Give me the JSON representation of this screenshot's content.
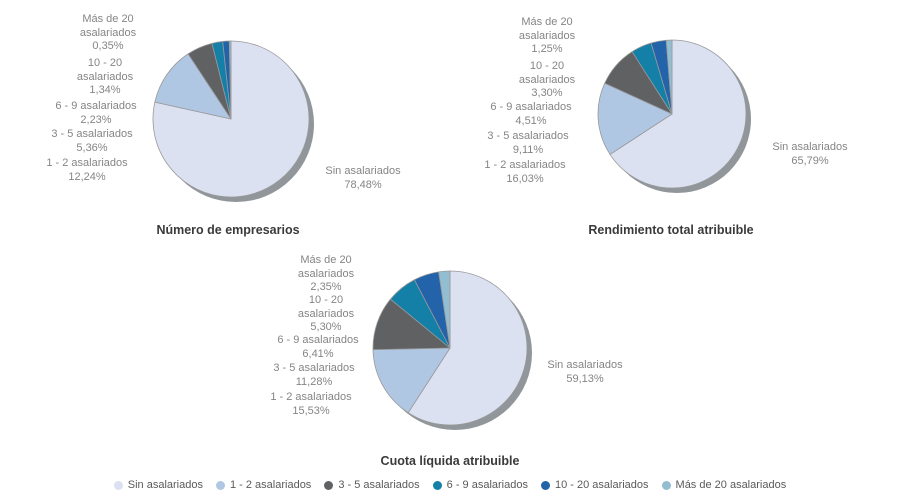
{
  "page": {
    "background": "#ffffff"
  },
  "categories": [
    "Sin asalariados",
    "1 - 2 asalariados",
    "3 - 5 asalariados",
    "6 - 9 asalariados",
    "10 - 20 asalariados",
    "Más de 20 asalariados"
  ],
  "colors": [
    "#dbe1f1",
    "#b0c7e4",
    "#5f6163",
    "#1480a8",
    "#2363aa",
    "#93bed2"
  ],
  "shadow_color": "#91969b",
  "slice_stroke_color": "#999999",
  "label_text_color": "#858585",
  "title_text_color": "#3a3a3a",
  "legend": {
    "items": [
      "Sin asalariados",
      "1 - 2 asalariados",
      "3 - 5 asalariados",
      "6 - 9 asalariados",
      "10 - 20 asalariados",
      "Más de 20 asalariados"
    ]
  },
  "chart_data": [
    {
      "type": "pie",
      "title": "Número de empresarios",
      "categories": [
        "Sin asalariados",
        "1 - 2 asalariados",
        "3 - 5 asalariados",
        "6 - 9 asalariados",
        "10 - 20 asalariados",
        "Más de 20 asalariados"
      ],
      "values": [
        78.48,
        12.24,
        5.36,
        2.23,
        1.34,
        0.35
      ],
      "value_labels": [
        "78,48%",
        "12,24%",
        "5,36%",
        "2,23%",
        "1,34%",
        "0,35%"
      ],
      "legend_position": "bottom-shared",
      "start_angle": "top",
      "direction": "clockwise"
    },
    {
      "type": "pie",
      "title": "Rendimiento total atribuible",
      "categories": [
        "Sin asalariados",
        "1 - 2 asalariados",
        "3 - 5 asalariados",
        "6 - 9 asalariados",
        "10 - 20 asalariados",
        "Más de 20 asalariados"
      ],
      "values": [
        65.79,
        16.03,
        9.11,
        4.51,
        3.3,
        1.25
      ],
      "value_labels": [
        "65,79%",
        "16,03%",
        "9,11%",
        "4,51%",
        "3,30%",
        "1,25%"
      ],
      "legend_position": "bottom-shared",
      "start_angle": "top",
      "direction": "clockwise"
    },
    {
      "type": "pie",
      "title": "Cuota líquida atribuible",
      "categories": [
        "Sin asalariados",
        "1 - 2 asalariados",
        "3 - 5 asalariados",
        "6 - 9 asalariados",
        "10 - 20 asalariados",
        "Más de 20 asalariados"
      ],
      "values": [
        59.13,
        15.53,
        11.28,
        6.41,
        5.3,
        2.35
      ],
      "value_labels": [
        "59,13%",
        "15,53%",
        "11,28%",
        "6,41%",
        "5,30%",
        "2,35%"
      ],
      "legend_position": "bottom-shared",
      "start_angle": "top",
      "direction": "clockwise"
    }
  ]
}
